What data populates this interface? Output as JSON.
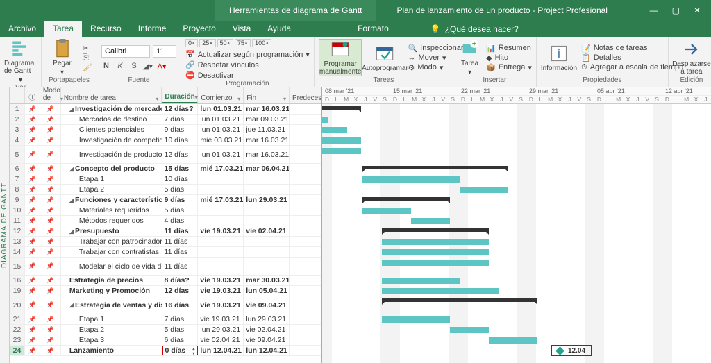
{
  "title": {
    "contextual": "Herramientas de diagrama de Gantt",
    "doc": "Plan de lanzamiento de un producto  -  Project Profesional"
  },
  "menu": {
    "archivo": "Archivo",
    "tarea": "Tarea",
    "recurso": "Recurso",
    "informe": "Informe",
    "proyecto": "Proyecto",
    "vista": "Vista",
    "ayuda": "Ayuda",
    "formato": "Formato",
    "tellme": "¿Qué desea hacer?"
  },
  "ribbon": {
    "ver": {
      "gantt": "Diagrama de Gantt",
      "label": "Ver"
    },
    "portapapeles": {
      "pegar": "Pegar",
      "label": "Portapapeles"
    },
    "fuente": {
      "font": "Calibri",
      "size": "11",
      "label": "Fuente"
    },
    "prog": {
      "actualizar": "Actualizar según programación",
      "respetar": "Respetar vínculos",
      "desactivar": "Desactivar",
      "label": "Programación"
    },
    "tareas": {
      "manual": "Programar manualmente",
      "auto": "Autoprogramar",
      "inspeccionar": "Inspeccionar",
      "mover": "Mover",
      "modo": "Modo",
      "label": "Tareas"
    },
    "insertar": {
      "tarea": "Tarea",
      "resumen": "Resumen",
      "hito": "Hito",
      "entrega": "Entrega",
      "label": "Insertar"
    },
    "prop": {
      "info": "Información",
      "notas": "Notas de tareas",
      "detalles": "Detalles",
      "escala": "Agregar a escala de tiempo",
      "label": "Propiedades"
    },
    "edicion": {
      "desplazar": "Desplazarse a tarea",
      "label": "Edición"
    }
  },
  "cols": {
    "modo": "Modo de",
    "nombre": "Nombre de tarea",
    "duracion": "Duración",
    "comienzo": "Comienzo",
    "fin": "Fin",
    "pred": "Predeceso"
  },
  "weeks": [
    "08 mar '21",
    "15 mar '21",
    "22 mar '21",
    "29 mar '21",
    "05 abr '21",
    "12 abr '21"
  ],
  "daylabels": [
    "D",
    "L",
    "M",
    "X",
    "J",
    "V",
    "S"
  ],
  "tasks": [
    {
      "n": 1,
      "name": "Investigación de mercado",
      "dur": "12 días?",
      "start": "lun 01.03.21",
      "end": "mar 16.03.21",
      "bold": true,
      "sum": true,
      "ind": 0,
      "bx": -70,
      "bw": 126
    },
    {
      "n": 2,
      "name": "Mercados de destino",
      "dur": "7 días",
      "start": "lun 01.03.21",
      "end": "mar 09.03.21",
      "ind": 1,
      "bx": -70,
      "bw": 78
    },
    {
      "n": 3,
      "name": "Clientes potenciales",
      "dur": "9 días",
      "start": "lun 01.03.21",
      "end": "jue 11.03.21",
      "ind": 1,
      "bx": -70,
      "bw": 106
    },
    {
      "n": 4,
      "name": "Investigación de competidores",
      "dur": "10 días",
      "start": "mié 03.03.21",
      "end": "mar 16.03.21",
      "ind": 1,
      "bx": -42,
      "bw": 98
    },
    {
      "n": 5,
      "name": "Investigación de productos similares",
      "dur": "12 días",
      "start": "lun 01.03.21",
      "end": "mar 16.03.21",
      "ind": 1,
      "tall": true,
      "bx": -70,
      "bw": 126
    },
    {
      "n": 6,
      "name": "Concepto del producto",
      "dur": "15 días",
      "start": "mié 17.03.21",
      "end": "mar 06.04.21",
      "bold": true,
      "sum": true,
      "ind": 0,
      "bx": 58,
      "bw": 210
    },
    {
      "n": 7,
      "name": "Etapa 1",
      "dur": "10 días",
      "ind": 1,
      "bx": 58,
      "bw": 140
    },
    {
      "n": 8,
      "name": "Etapa 2",
      "dur": "5 días",
      "ind": 1,
      "bx": 198,
      "bw": 70
    },
    {
      "n": 9,
      "name": "Funciones y características",
      "dur": "9 días",
      "start": "mié 17.03.21",
      "end": "lun 29.03.21",
      "bold": true,
      "sum": true,
      "ind": 0,
      "bx": 58,
      "bw": 126
    },
    {
      "n": 10,
      "name": "Materiales requeridos",
      "dur": "5 días",
      "ind": 1,
      "bx": 58,
      "bw": 70
    },
    {
      "n": 11,
      "name": "Métodos requeridos",
      "dur": "4 días",
      "ind": 1,
      "bx": 128,
      "bw": 56
    },
    {
      "n": 12,
      "name": "Presupuesto",
      "dur": "11 días",
      "start": "vie 19.03.21",
      "end": "vie 02.04.21",
      "bold": true,
      "sum": true,
      "ind": 0,
      "bx": 86,
      "bw": 154
    },
    {
      "n": 13,
      "name": "Trabajar con patrocinadores",
      "dur": "11 días",
      "ind": 1,
      "bx": 86,
      "bw": 154
    },
    {
      "n": 14,
      "name": "Trabajar con contratistas",
      "dur": "11 días",
      "ind": 1,
      "bx": 86,
      "bw": 154
    },
    {
      "n": 15,
      "name": "Modelar el ciclo de vida del producto",
      "dur": "11 días",
      "ind": 1,
      "tall": true,
      "bx": 86,
      "bw": 154
    },
    {
      "n": 16,
      "name": "Estrategia de precios",
      "dur": "8 días?",
      "start": "vie 19.03.21",
      "end": "mar 30.03.21",
      "bold": true,
      "ind": 0,
      "bx": 86,
      "bw": 112
    },
    {
      "n": 19,
      "name": "Marketing y Promoción",
      "dur": "12 días",
      "start": "vie 19.03.21",
      "end": "lun 05.04.21",
      "bold": true,
      "ind": 0,
      "bx": 86,
      "bw": 168
    },
    {
      "n": 20,
      "name": "Estrategia de ventas y distribución",
      "dur": "16 días",
      "start": "vie 19.03.21",
      "end": "vie 09.04.21",
      "bold": true,
      "sum": true,
      "ind": 0,
      "tall": true,
      "bx": 86,
      "bw": 224
    },
    {
      "n": 21,
      "name": "Etapa 1",
      "dur": "7 días",
      "start": "vie 19.03.21",
      "end": "lun 29.03.21",
      "ind": 1,
      "bx": 86,
      "bw": 98
    },
    {
      "n": 22,
      "name": "Etapa 2",
      "dur": "5 días",
      "start": "lun 29.03.21",
      "end": "vie 02.04.21",
      "ind": 1,
      "bx": 184,
      "bw": 56
    },
    {
      "n": 23,
      "name": "Etapa 3",
      "dur": "6 días",
      "start": "vie 02.04.21",
      "end": "vie 09.04.21",
      "ind": 1,
      "bx": 240,
      "bw": 70
    },
    {
      "n": 24,
      "name": "Lanzamiento",
      "dur": "0 días",
      "start": "lun 12.04.21",
      "end": "lun 12.04.21",
      "bold": true,
      "ind": 0,
      "sel": true,
      "milestone": true,
      "mx": 338,
      "mlabel": "12.04"
    }
  ],
  "leftlabel": "DIAGRAMA DE GANTT"
}
